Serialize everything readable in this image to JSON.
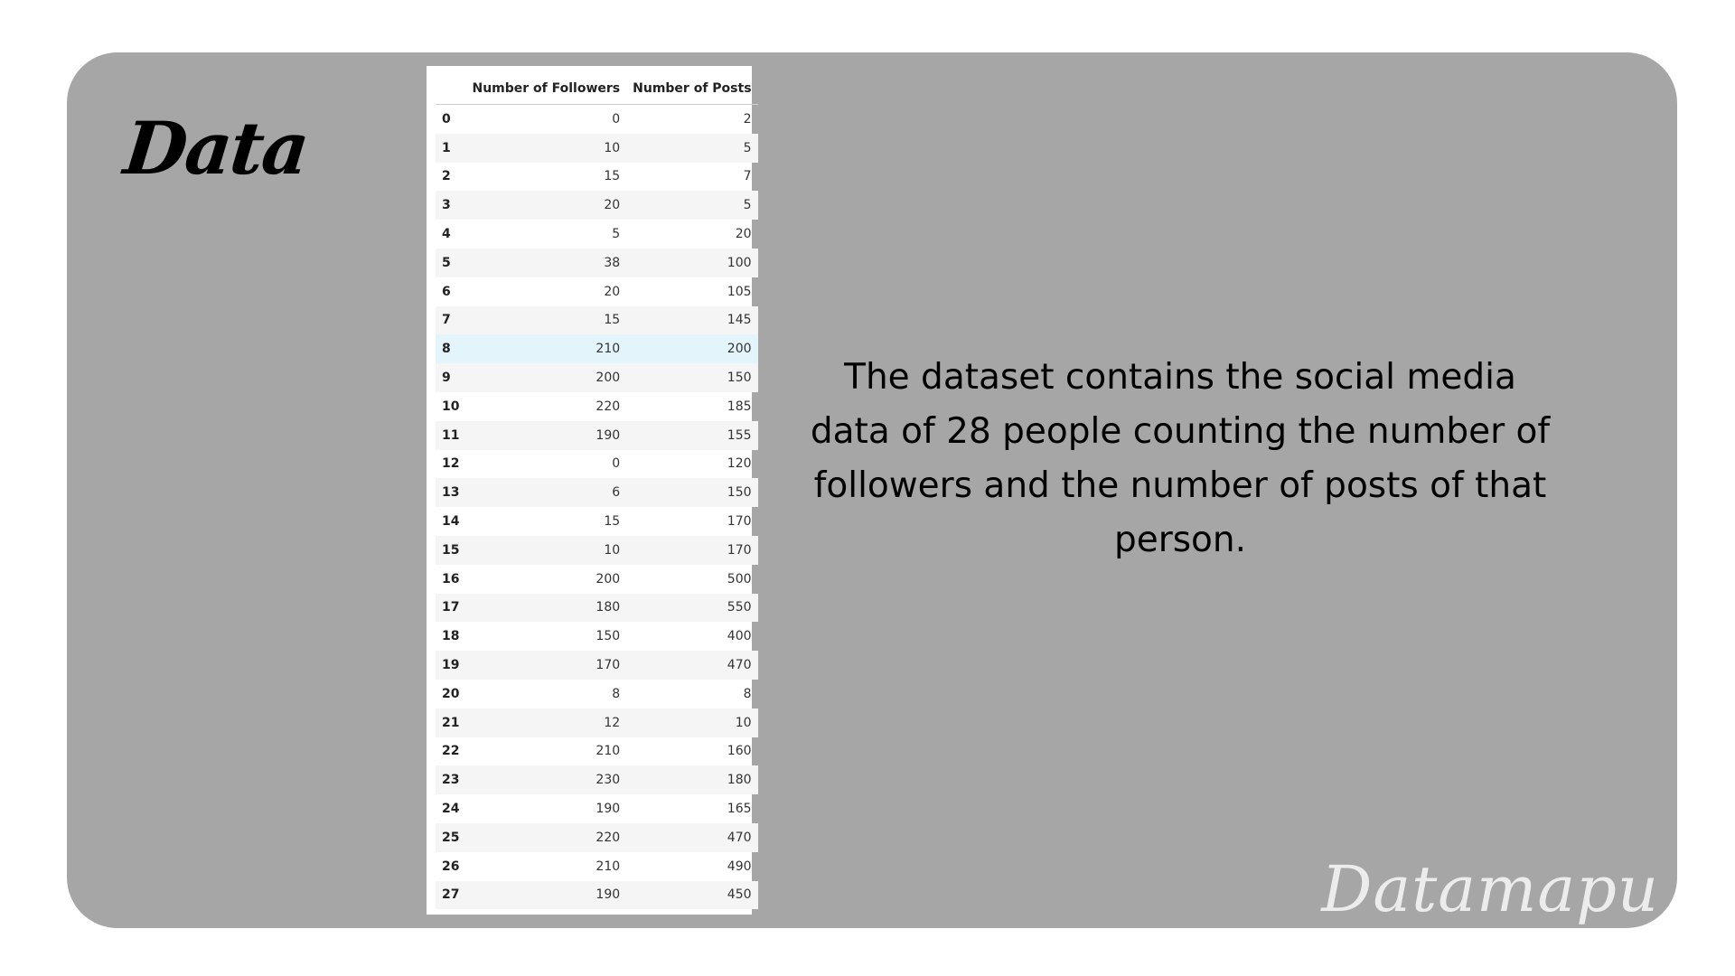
{
  "slide": {
    "title": "Data",
    "description": "The dataset contains the social media data of 28 people counting the number of followers and the number of posts of that person.",
    "watermark": "Datamapu",
    "background_color": "#a6a6a6"
  },
  "table": {
    "columns": [
      "",
      "Number of Followers",
      "Number of Posts"
    ],
    "highlight_row": 8,
    "rows": [
      {
        "index": "0",
        "followers": "0",
        "posts": "2"
      },
      {
        "index": "1",
        "followers": "10",
        "posts": "5"
      },
      {
        "index": "2",
        "followers": "15",
        "posts": "7"
      },
      {
        "index": "3",
        "followers": "20",
        "posts": "5"
      },
      {
        "index": "4",
        "followers": "5",
        "posts": "20"
      },
      {
        "index": "5",
        "followers": "38",
        "posts": "100"
      },
      {
        "index": "6",
        "followers": "20",
        "posts": "105"
      },
      {
        "index": "7",
        "followers": "15",
        "posts": "145"
      },
      {
        "index": "8",
        "followers": "210",
        "posts": "200"
      },
      {
        "index": "9",
        "followers": "200",
        "posts": "150"
      },
      {
        "index": "10",
        "followers": "220",
        "posts": "185"
      },
      {
        "index": "11",
        "followers": "190",
        "posts": "155"
      },
      {
        "index": "12",
        "followers": "0",
        "posts": "120"
      },
      {
        "index": "13",
        "followers": "6",
        "posts": "150"
      },
      {
        "index": "14",
        "followers": "15",
        "posts": "170"
      },
      {
        "index": "15",
        "followers": "10",
        "posts": "170"
      },
      {
        "index": "16",
        "followers": "200",
        "posts": "500"
      },
      {
        "index": "17",
        "followers": "180",
        "posts": "550"
      },
      {
        "index": "18",
        "followers": "150",
        "posts": "400"
      },
      {
        "index": "19",
        "followers": "170",
        "posts": "470"
      },
      {
        "index": "20",
        "followers": "8",
        "posts": "8"
      },
      {
        "index": "21",
        "followers": "12",
        "posts": "10"
      },
      {
        "index": "22",
        "followers": "210",
        "posts": "160"
      },
      {
        "index": "23",
        "followers": "230",
        "posts": "180"
      },
      {
        "index": "24",
        "followers": "190",
        "posts": "165"
      },
      {
        "index": "25",
        "followers": "220",
        "posts": "470"
      },
      {
        "index": "26",
        "followers": "210",
        "posts": "490"
      },
      {
        "index": "27",
        "followers": "190",
        "posts": "450"
      }
    ]
  }
}
